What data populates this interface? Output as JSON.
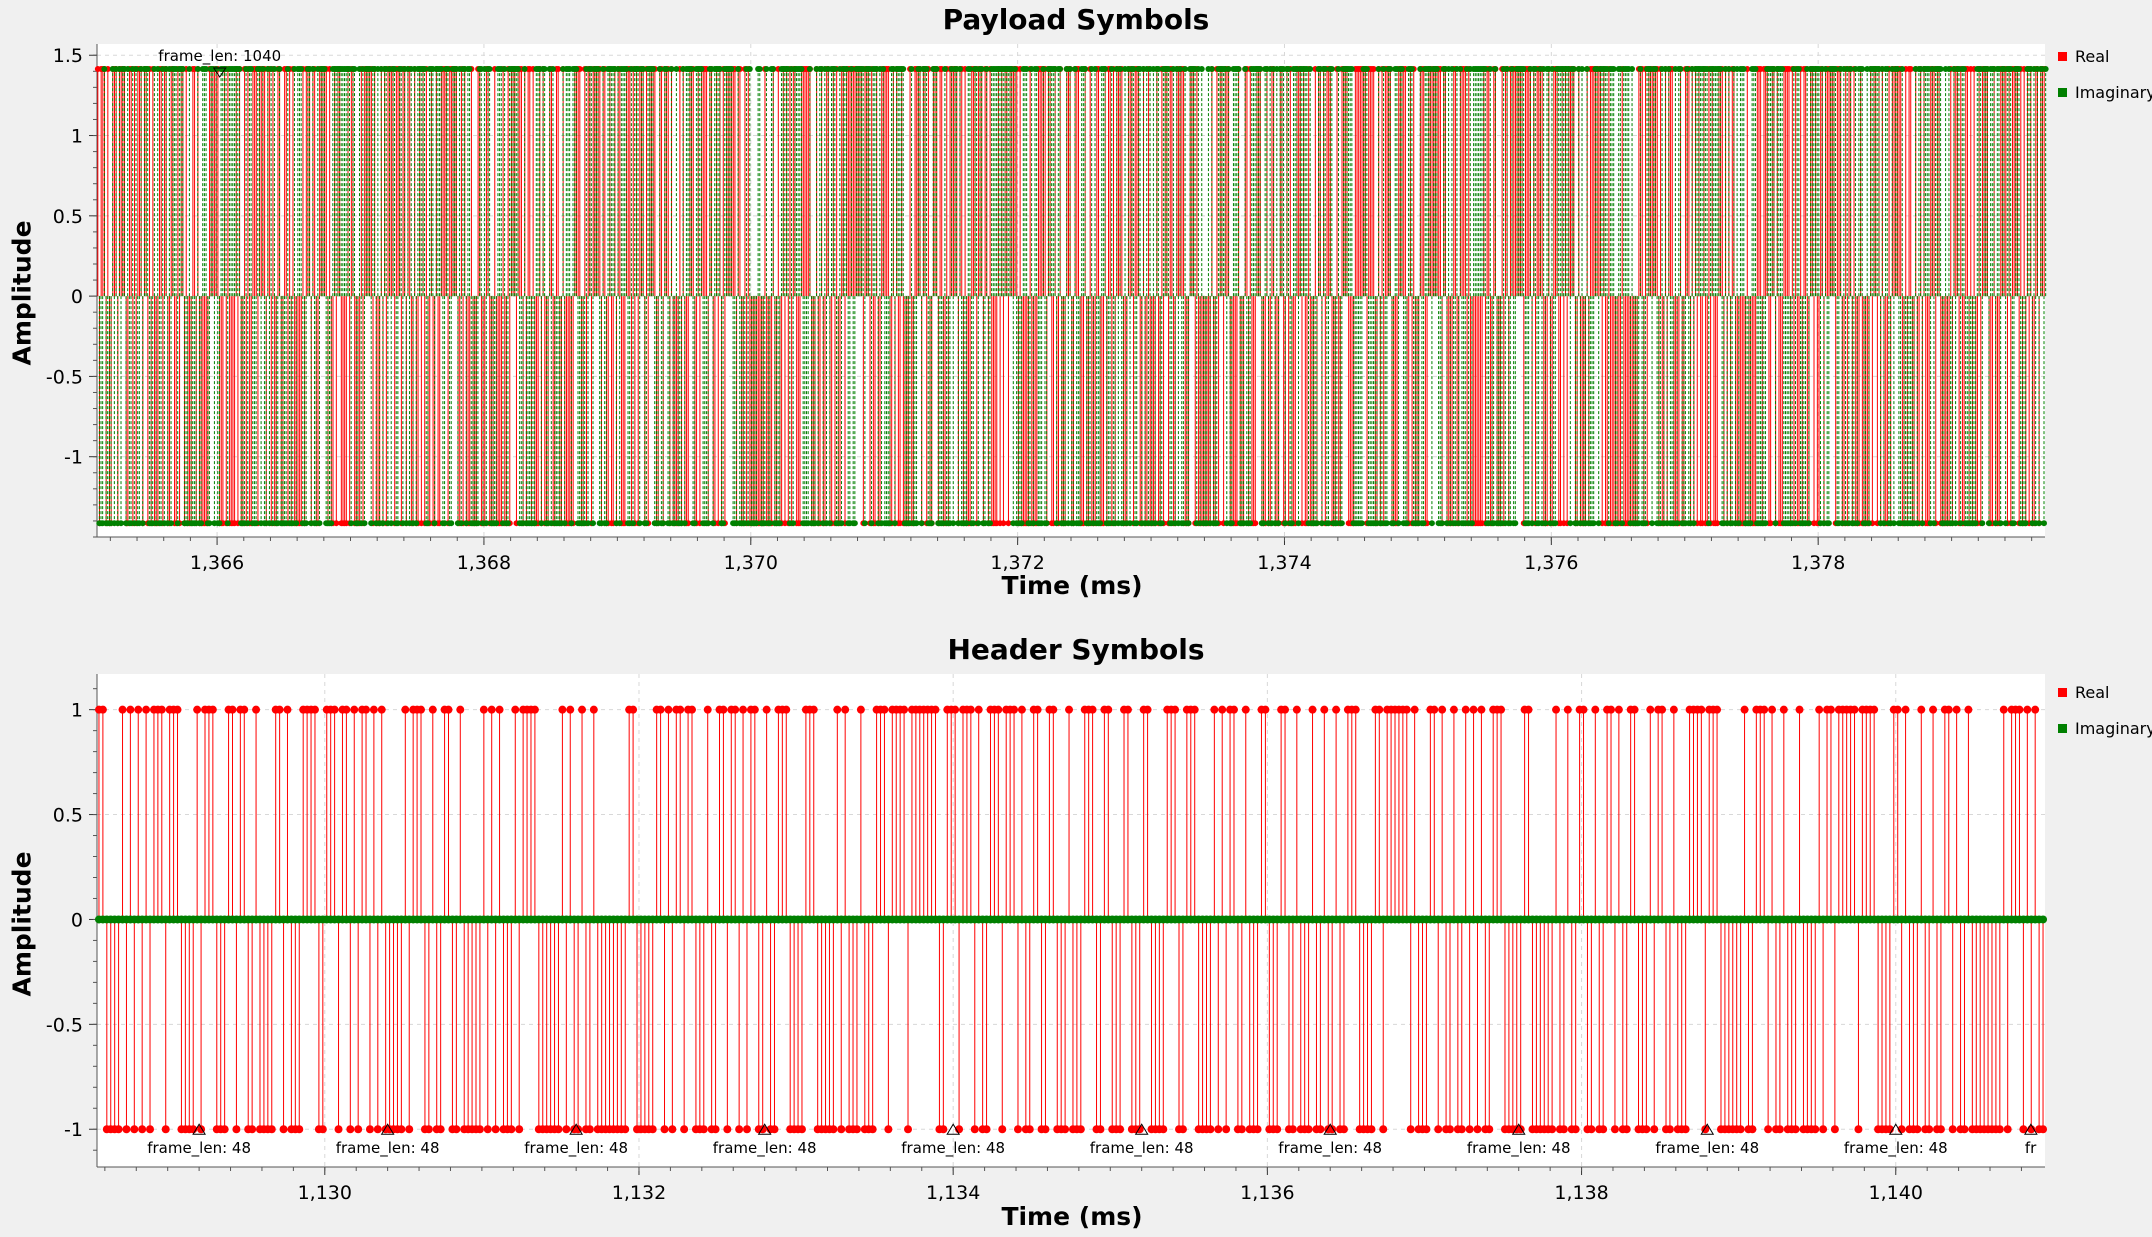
{
  "chart_data": [
    {
      "type": "line",
      "title": "Payload Symbols",
      "xlabel": "Time (ms)",
      "ylabel": "Amplitude",
      "xlim": [
        1365.1,
        1379.7
      ],
      "ylim": [
        -1.5,
        1.57
      ],
      "xticks": [
        1366,
        1368,
        1370,
        1372,
        1374,
        1376,
        1378
      ],
      "xtick_labels": [
        "1,366",
        "1,368",
        "1,370",
        "1,372",
        "1,374",
        "1,376",
        "1,378"
      ],
      "yticks": [
        1.5,
        1,
        0.5,
        0,
        -0.5,
        -1
      ],
      "ytick_labels": [
        "1.5",
        "1",
        "0.5",
        "0",
        "-0.5",
        "-1"
      ],
      "grid": true,
      "legend_position": "right",
      "symbol_levels": [
        1.414,
        -1.414
      ],
      "sample_period_ms": 0.0125,
      "tag": {
        "label": "frame_len: 1040",
        "x": 1366.02,
        "marker": "down-triangle",
        "position": "top"
      },
      "series": [
        {
          "name": "Real",
          "color": "#ff0000",
          "style": "stem-solid"
        },
        {
          "name": "Imaginary",
          "color": "#008000",
          "style": "stem-dotted"
        }
      ]
    },
    {
      "type": "line",
      "title": "Header Symbols",
      "xlabel": "Time (ms)",
      "ylabel": "Amplitude",
      "xlim": [
        1128.55,
        1140.95
      ],
      "ylim": [
        -1.18,
        1.17
      ],
      "xticks": [
        1130,
        1132,
        1134,
        1136,
        1138,
        1140
      ],
      "xtick_labels": [
        "1,130",
        "1,132",
        "1,134",
        "1,136",
        "1,138",
        "1,140"
      ],
      "yticks": [
        1,
        0.5,
        0,
        -0.5,
        -1
      ],
      "ytick_labels": [
        "1",
        "0.5",
        "0",
        "-0.5",
        "-1"
      ],
      "grid": true,
      "legend_position": "right",
      "symbol_levels": [
        1,
        -1
      ],
      "sample_period_ms": 0.025,
      "frame_period_ms": 1.2,
      "tags": [
        {
          "label": "frame_len: 48",
          "x": 1129.2
        },
        {
          "label": "frame_len: 48",
          "x": 1130.4
        },
        {
          "label": "frame_len: 48",
          "x": 1131.6
        },
        {
          "label": "frame_len: 48",
          "x": 1132.8
        },
        {
          "label": "frame_len: 48",
          "x": 1134.0
        },
        {
          "label": "frame_len: 48",
          "x": 1135.2
        },
        {
          "label": "frame_len: 48",
          "x": 1136.4
        },
        {
          "label": "frame_len: 48",
          "x": 1137.6
        },
        {
          "label": "frame_len: 48",
          "x": 1138.8
        },
        {
          "label": "frame_len: 48",
          "x": 1140.0
        },
        {
          "label": "fr",
          "x": 1140.86
        }
      ],
      "series": [
        {
          "name": "Real",
          "color": "#ff0000",
          "style": "stem-solid",
          "values_at": [
            1,
            -1
          ]
        },
        {
          "name": "Imaginary",
          "color": "#008000",
          "style": "stem-solid",
          "constant": 0
        }
      ]
    }
  ]
}
